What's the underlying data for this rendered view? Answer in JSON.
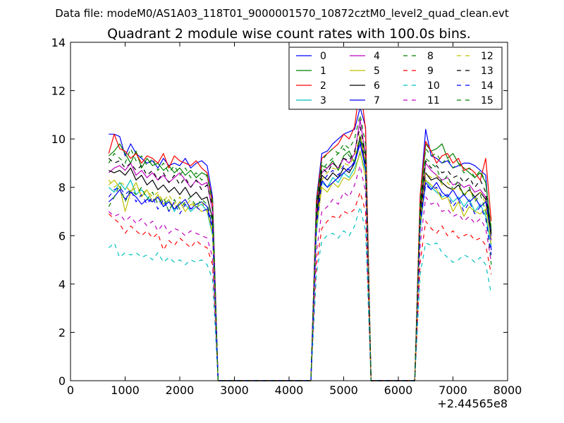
{
  "figure": {
    "suptitle": "Data file: modeM0/AS1A03_118T01_9000001570_10872cztM0_level2_quad_clean.evt"
  },
  "chart_data": {
    "type": "line",
    "title": "Quadrant 2 module wise count rates with 100.0s bins.",
    "xlabel": "",
    "ylabel": "",
    "x_offset_label": "+2.44565e8",
    "xlim": [
      0,
      8000
    ],
    "ylim": [
      0,
      14
    ],
    "xticks": [
      0,
      1000,
      2000,
      3000,
      4000,
      5000,
      6000,
      7000,
      8000
    ],
    "xtick_labels": [
      "0",
      "1000",
      "2000",
      "3000",
      "4000",
      "5000",
      "6000",
      "7000",
      "8000"
    ],
    "yticks": [
      0,
      2,
      4,
      6,
      8,
      10,
      12,
      14
    ],
    "ytick_labels": [
      "0",
      "2",
      "4",
      "6",
      "8",
      "10",
      "12",
      "14"
    ],
    "grid": false,
    "legend_position": "upper-right",
    "legend_columns": 4,
    "x": [
      700,
      800,
      900,
      1000,
      1100,
      1200,
      1300,
      1400,
      1500,
      1600,
      1700,
      1800,
      1900,
      2000,
      2100,
      2200,
      2300,
      2400,
      2500,
      2600,
      2700,
      4400,
      4500,
      4600,
      4700,
      4800,
      4900,
      5000,
      5100,
      5200,
      5300,
      5400,
      5500,
      6300,
      6400,
      6500,
      6600,
      6700,
      6800,
      6900,
      7000,
      7100,
      7200,
      7300,
      7400,
      7500,
      7600,
      7700
    ],
    "series": [
      {
        "name": "0",
        "color": "#0000ff",
        "dash": "solid",
        "values": [
          10.2,
          10.2,
          10.1,
          9.3,
          9.8,
          9.4,
          9.2,
          9.0,
          9.1,
          8.8,
          9.2,
          8.9,
          9.0,
          8.9,
          9.2,
          8.8,
          9.0,
          9.1,
          8.9,
          7.6,
          0,
          0,
          7.5,
          9.4,
          9.5,
          9.8,
          10.0,
          10.2,
          10.3,
          10.4,
          11.3,
          10.5,
          0,
          0,
          7.6,
          10.4,
          9.3,
          9.2,
          9.0,
          9.1,
          8.8,
          8.9,
          9.0,
          9.0,
          8.9,
          8.7,
          8.5,
          5.4
        ]
      },
      {
        "name": "1",
        "color": "#008000",
        "dash": "solid",
        "values": [
          9.3,
          9.5,
          9.8,
          9.4,
          9.0,
          9.5,
          8.8,
          9.2,
          8.9,
          9.0,
          8.7,
          8.9,
          8.6,
          8.8,
          8.5,
          8.7,
          8.4,
          8.6,
          8.5,
          7.3,
          0,
          0,
          7.2,
          8.9,
          8.8,
          9.1,
          8.7,
          9.3,
          9.5,
          9.0,
          10.1,
          9.4,
          0,
          0,
          7.1,
          9.8,
          9.5,
          9.6,
          9.8,
          9.2,
          9.4,
          9.0,
          8.8,
          8.6,
          8.4,
          8.6,
          8.2,
          6.2
        ]
      },
      {
        "name": "2",
        "color": "#ff0000",
        "dash": "solid",
        "values": [
          9.4,
          10.2,
          9.6,
          9.5,
          9.2,
          9.4,
          9.0,
          9.3,
          9.2,
          9.0,
          9.4,
          8.8,
          9.3,
          9.1,
          9.0,
          8.9,
          9.1,
          8.8,
          8.6,
          7.4,
          0,
          0,
          7.4,
          9.2,
          9.4,
          9.6,
          9.8,
          10.2,
          10.0,
          10.5,
          12.3,
          10.4,
          0,
          0,
          7.7,
          9.9,
          9.5,
          9.0,
          9.3,
          9.4,
          9.0,
          9.2,
          8.7,
          8.8,
          8.6,
          8.3,
          9.2,
          6.6
        ]
      },
      {
        "name": "3",
        "color": "#00bfbf",
        "dash": "solid",
        "values": [
          8.0,
          7.8,
          8.2,
          7.9,
          8.3,
          7.7,
          7.9,
          7.6,
          7.4,
          7.6,
          7.2,
          7.5,
          7.0,
          7.4,
          7.3,
          7.0,
          7.2,
          7.3,
          7.0,
          6.0,
          0,
          0,
          6.1,
          8.2,
          8.0,
          8.4,
          8.2,
          8.6,
          8.4,
          8.8,
          9.4,
          8.7,
          0,
          0,
          6.2,
          8.3,
          8.0,
          7.8,
          7.6,
          7.7,
          7.4,
          7.6,
          7.2,
          7.5,
          7.0,
          7.3,
          6.8,
          5.6
        ]
      },
      {
        "name": "4",
        "color": "#bf00bf",
        "dash": "solid",
        "values": [
          8.6,
          8.8,
          8.9,
          8.7,
          9.0,
          8.5,
          8.7,
          8.4,
          8.6,
          8.3,
          8.5,
          8.2,
          8.4,
          8.6,
          8.3,
          8.0,
          8.3,
          8.1,
          8.2,
          7.0,
          0,
          0,
          7.0,
          8.6,
          8.8,
          9.0,
          8.8,
          9.2,
          9.0,
          9.4,
          10.8,
          9.3,
          0,
          0,
          6.9,
          9.0,
          8.7,
          8.5,
          8.3,
          8.4,
          8.1,
          8.2,
          8.0,
          8.1,
          7.8,
          7.9,
          7.6,
          5.8
        ]
      },
      {
        "name": "5",
        "color": "#bfbf00",
        "dash": "solid",
        "values": [
          8.1,
          8.3,
          8.0,
          7.0,
          7.8,
          8.2,
          7.6,
          7.9,
          7.4,
          7.7,
          7.3,
          7.5,
          7.1,
          7.4,
          7.0,
          7.3,
          7.2,
          7.0,
          7.1,
          6.1,
          0,
          0,
          6.3,
          8.0,
          7.8,
          8.2,
          8.0,
          8.4,
          8.3,
          8.6,
          9.5,
          8.4,
          0,
          0,
          6.4,
          8.3,
          8.1,
          7.9,
          7.5,
          7.6,
          7.0,
          7.4,
          6.8,
          7.2,
          7.0,
          6.9,
          7.1,
          5.9
        ]
      },
      {
        "name": "6",
        "color": "#000000",
        "dash": "solid",
        "values": [
          8.7,
          8.6,
          8.7,
          8.5,
          8.8,
          8.3,
          8.5,
          8.1,
          8.3,
          7.9,
          8.1,
          7.8,
          8.0,
          7.7,
          8.0,
          7.6,
          7.8,
          7.5,
          7.6,
          6.7,
          0,
          0,
          6.7,
          8.5,
          8.3,
          8.6,
          8.4,
          8.8,
          8.6,
          9.0,
          10.1,
          8.9,
          0,
          0,
          6.8,
          8.6,
          8.3,
          8.4,
          8.2,
          8.0,
          7.9,
          8.1,
          7.7,
          7.9,
          7.6,
          7.8,
          7.5,
          6.1
        ]
      },
      {
        "name": "7",
        "color": "#0000ff",
        "dash": "solid",
        "values": [
          7.4,
          7.6,
          7.9,
          7.5,
          7.8,
          7.6,
          7.3,
          7.5,
          7.4,
          7.6,
          7.2,
          7.4,
          7.1,
          7.3,
          7.5,
          7.1,
          7.3,
          7.4,
          7.2,
          6.4,
          0,
          0,
          6.5,
          8.3,
          8.0,
          8.2,
          8.4,
          8.6,
          8.8,
          9.0,
          9.8,
          8.8,
          0,
          0,
          6.6,
          8.2,
          7.9,
          8.2,
          7.8,
          7.6,
          7.9,
          7.5,
          7.7,
          7.4,
          7.6,
          7.2,
          7.4,
          6.0
        ]
      },
      {
        "name": "8",
        "color": "#008000",
        "dash": "dashed",
        "values": [
          7.2,
          7.6,
          8.1,
          7.4,
          7.9,
          7.7,
          8.0,
          7.5,
          7.8,
          7.3,
          7.6,
          7.0,
          7.5,
          7.1,
          7.4,
          7.6,
          7.2,
          7.5,
          7.3,
          6.6,
          0,
          0,
          7.0,
          8.7,
          9.0,
          9.2,
          9.4,
          9.6,
          9.3,
          9.1,
          10.0,
          9.2,
          0,
          0,
          7.0,
          9.2,
          9.0,
          8.8,
          8.2,
          8.5,
          7.9,
          8.3,
          7.6,
          8.0,
          7.4,
          7.7,
          7.0,
          4.8
        ]
      },
      {
        "name": "9",
        "color": "#ff0000",
        "dash": "dashed",
        "values": [
          6.9,
          6.7,
          6.5,
          6.1,
          6.4,
          6.2,
          6.0,
          6.2,
          5.9,
          6.1,
          5.4,
          5.8,
          5.6,
          5.9,
          5.7,
          5.5,
          5.8,
          5.6,
          5.5,
          4.8,
          0,
          0,
          4.8,
          6.3,
          6.6,
          6.8,
          6.7,
          7.0,
          6.9,
          7.1,
          7.8,
          7.0,
          0,
          0,
          4.9,
          6.6,
          6.3,
          6.1,
          6.4,
          6.0,
          6.2,
          5.9,
          6.0,
          6.1,
          5.8,
          5.9,
          5.6,
          4.4
        ]
      },
      {
        "name": "10",
        "color": "#00bfbf",
        "dash": "dashed",
        "values": [
          5.5,
          5.7,
          5.1,
          5.3,
          5.2,
          5.3,
          5.1,
          5.2,
          5.0,
          5.3,
          4.9,
          5.1,
          4.9,
          5.0,
          4.8,
          5.0,
          4.9,
          5.0,
          4.8,
          4.2,
          0,
          0,
          4.4,
          5.8,
          6.0,
          6.1,
          5.9,
          6.2,
          6.0,
          6.4,
          7.2,
          6.2,
          0,
          0,
          4.4,
          5.7,
          5.6,
          5.7,
          5.3,
          5.1,
          4.9,
          5.0,
          5.2,
          5.1,
          4.9,
          5.1,
          4.8,
          3.6
        ]
      },
      {
        "name": "11",
        "color": "#bf00bf",
        "dash": "dashed",
        "values": [
          7.0,
          6.8,
          6.9,
          6.6,
          6.8,
          6.5,
          6.7,
          6.4,
          6.6,
          6.2,
          6.5,
          6.1,
          6.3,
          6.2,
          6.0,
          6.2,
          6.1,
          6.0,
          5.9,
          5.1,
          0,
          0,
          5.3,
          7.0,
          7.2,
          7.5,
          7.3,
          7.8,
          7.6,
          8.1,
          8.9,
          7.8,
          0,
          0,
          5.6,
          7.6,
          7.3,
          7.4,
          7.0,
          7.1,
          6.8,
          6.9,
          6.6,
          6.8,
          6.5,
          6.7,
          6.3,
          4.9
        ]
      },
      {
        "name": "12",
        "color": "#bfbf00",
        "dash": "dashed",
        "values": [
          8.3,
          8.0,
          8.2,
          8.1,
          7.8,
          8.0,
          7.7,
          7.9,
          7.6,
          7.8,
          7.4,
          7.7,
          7.3,
          7.6,
          7.2,
          7.5,
          7.1,
          7.4,
          7.0,
          6.2,
          0,
          0,
          6.4,
          8.3,
          8.6,
          8.8,
          8.7,
          9.0,
          8.9,
          9.3,
          10.2,
          9.0,
          0,
          0,
          6.6,
          8.6,
          8.4,
          8.5,
          8.1,
          8.2,
          7.9,
          8.0,
          7.7,
          7.9,
          7.5,
          7.8,
          7.3,
          5.6
        ]
      },
      {
        "name": "13",
        "color": "#000000",
        "dash": "dashed",
        "values": [
          9.2,
          9.0,
          9.1,
          8.8,
          9.0,
          8.7,
          8.9,
          8.5,
          8.7,
          8.3,
          8.6,
          8.2,
          8.5,
          8.1,
          8.4,
          8.0,
          8.3,
          7.9,
          8.1,
          7.2,
          0,
          0,
          7.1,
          8.8,
          8.6,
          9.0,
          8.8,
          9.2,
          9.1,
          9.5,
          10.5,
          9.3,
          0,
          0,
          7.2,
          9.1,
          8.8,
          8.9,
          8.6,
          8.7,
          8.4,
          8.5,
          8.2,
          8.4,
          8.0,
          8.3,
          7.8,
          6.0
        ]
      },
      {
        "name": "14",
        "color": "#0000ff",
        "dash": "dashed",
        "values": [
          7.6,
          7.9,
          8.0,
          7.7,
          7.9,
          7.4,
          7.7,
          7.3,
          7.6,
          7.1,
          7.5,
          7.0,
          7.4,
          6.9,
          7.3,
          7.1,
          7.2,
          7.0,
          7.1,
          6.3,
          0,
          0,
          6.4,
          8.2,
          8.5,
          8.7,
          8.5,
          8.9,
          8.7,
          9.1,
          9.9,
          8.8,
          0,
          0,
          6.5,
          8.1,
          7.9,
          8.0,
          7.6,
          7.7,
          7.2,
          7.5,
          7.0,
          7.4,
          6.9,
          7.2,
          6.7,
          5.2
        ]
      },
      {
        "name": "15",
        "color": "#008000",
        "dash": "dashed",
        "values": [
          9.0,
          9.4,
          9.2,
          9.0,
          9.6,
          9.1,
          9.3,
          8.9,
          9.2,
          8.7,
          9.0,
          8.6,
          8.9,
          8.5,
          8.8,
          8.4,
          8.6,
          8.3,
          8.5,
          7.5,
          0,
          0,
          7.4,
          9.1,
          9.4,
          9.6,
          9.4,
          9.8,
          9.6,
          10.0,
          11.0,
          9.8,
          0,
          0,
          7.5,
          9.6,
          9.3,
          9.4,
          9.0,
          9.2,
          8.8,
          9.0,
          8.6,
          8.8,
          8.4,
          8.7,
          8.2,
          6.3
        ]
      }
    ]
  }
}
